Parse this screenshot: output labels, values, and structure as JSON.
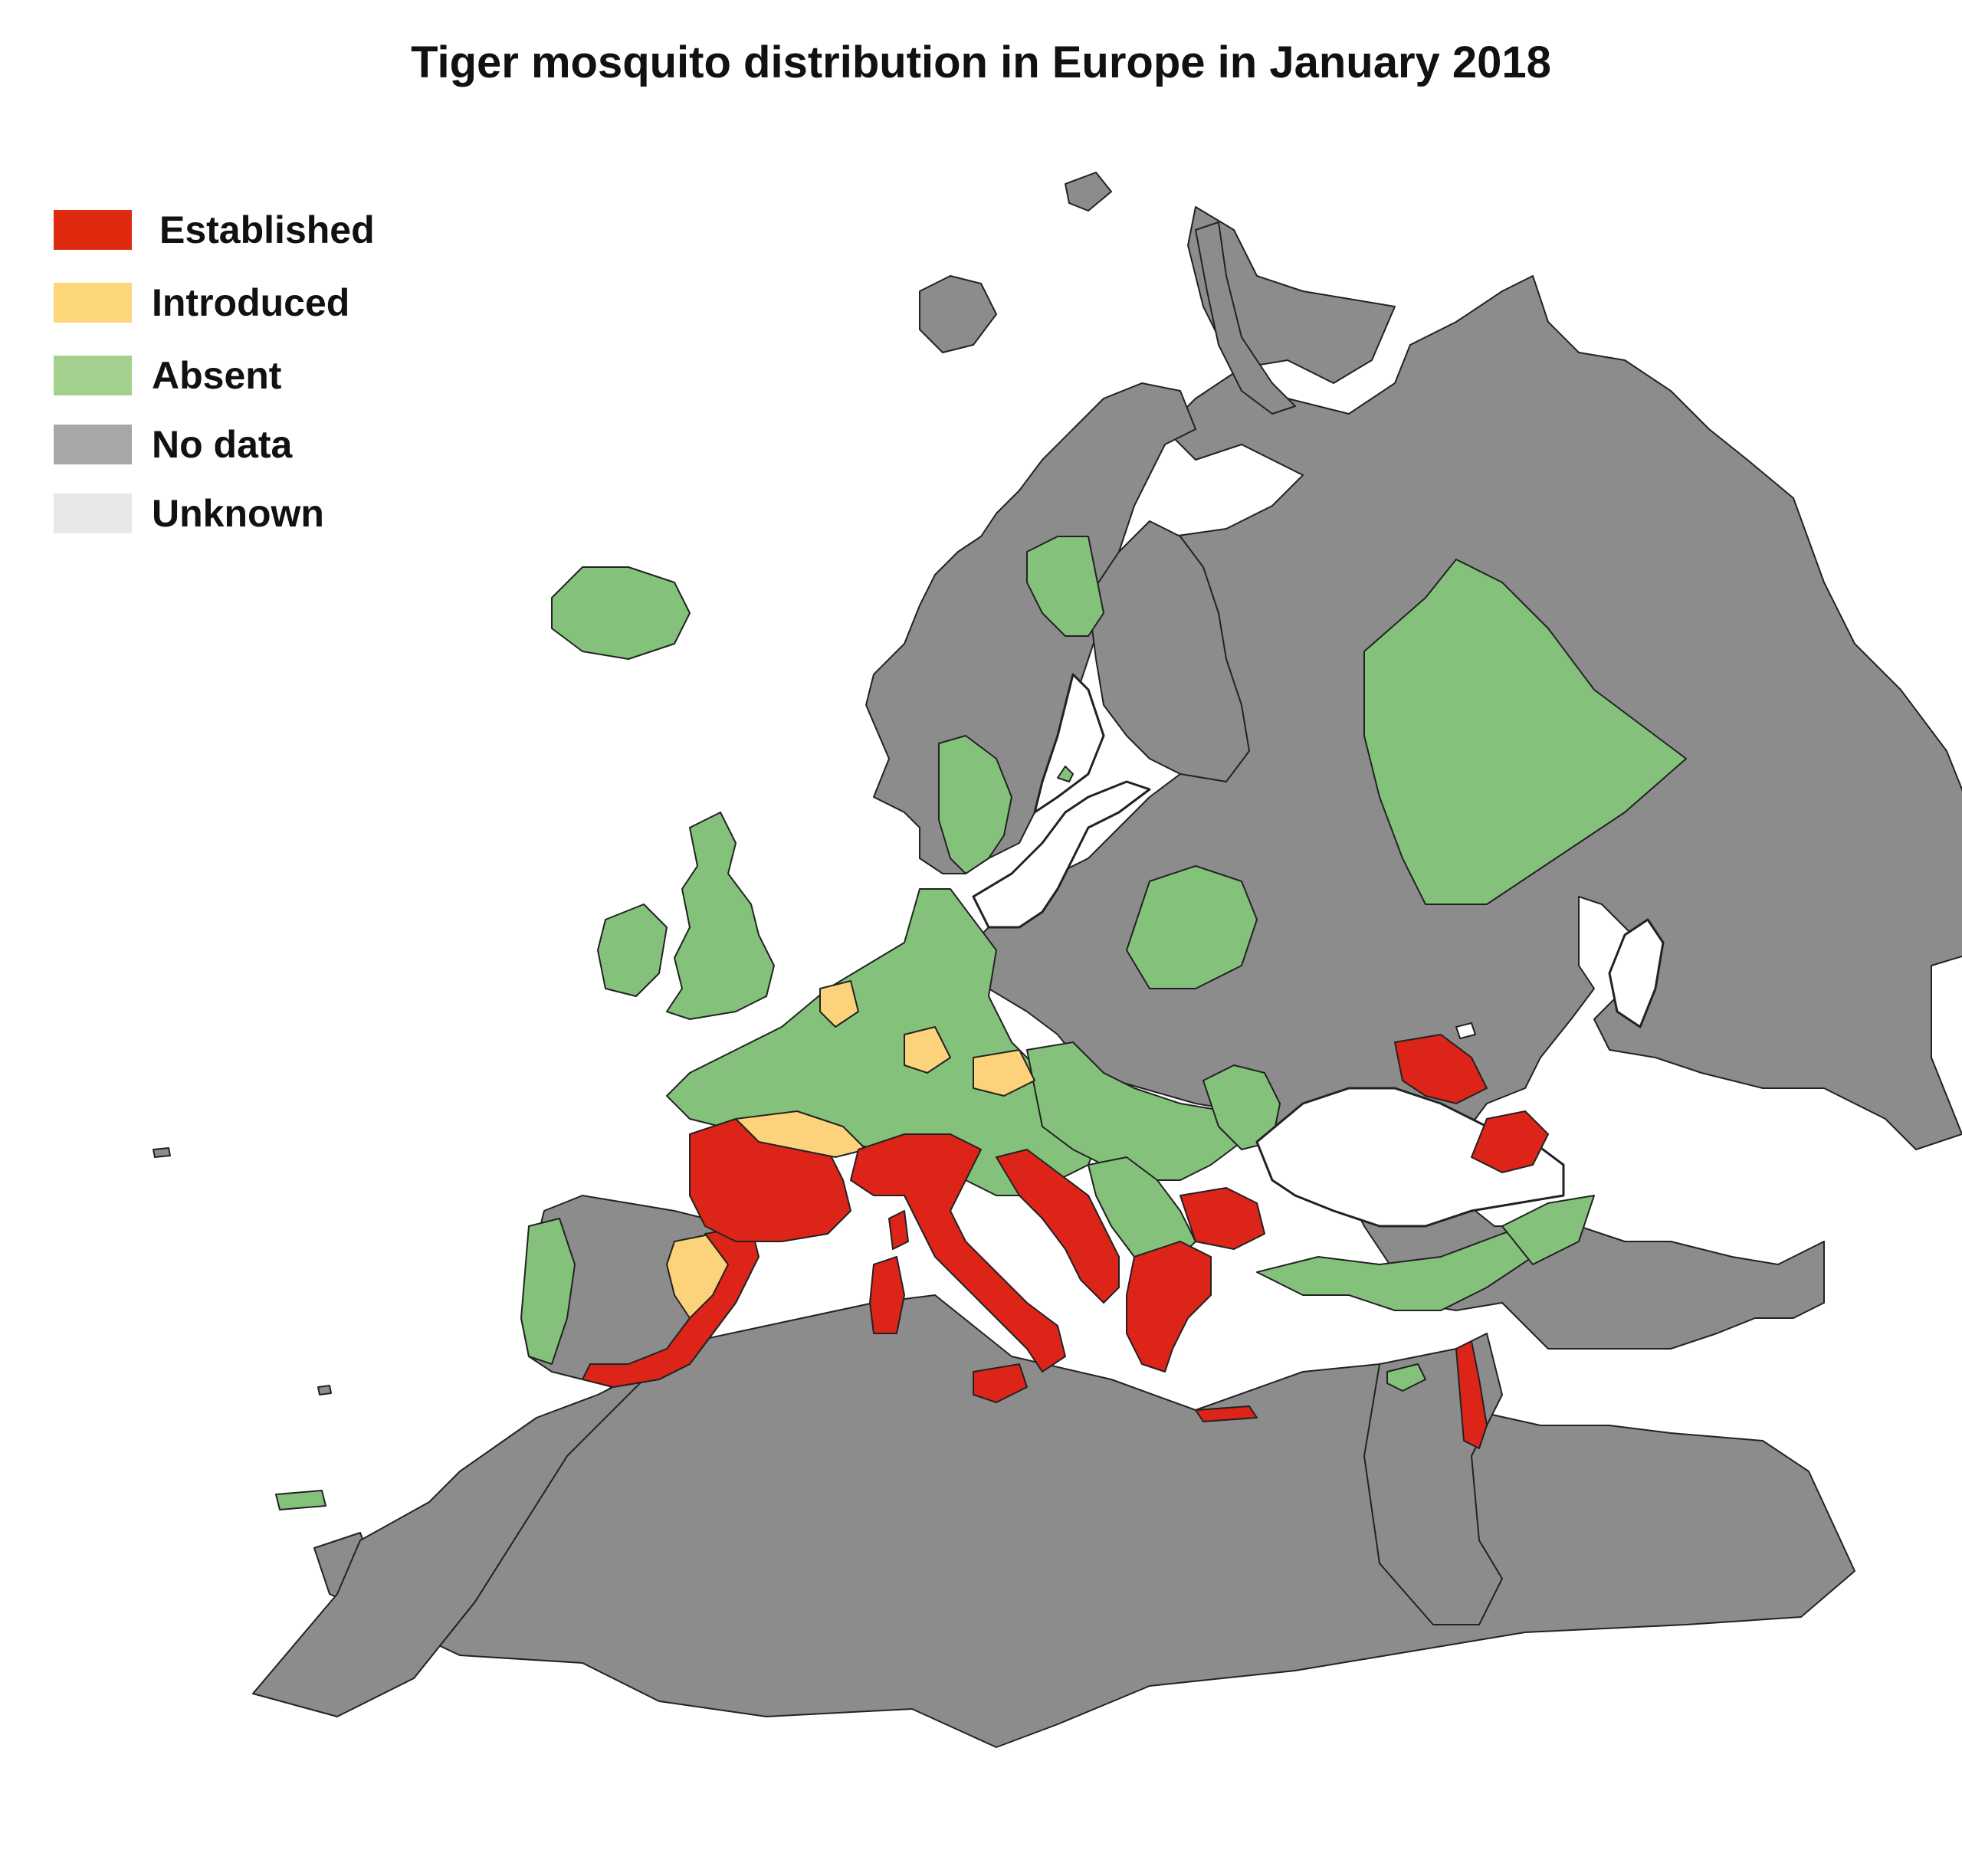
{
  "title": "Tiger mosquito distribution in Europe in January 2018",
  "legend": [
    {
      "label": "Established",
      "color": "#e02a10"
    },
    {
      "label": "Introduced",
      "color": "#fcd77a"
    },
    {
      "label": "Absent",
      "color": "#a4d08e"
    },
    {
      "label": "No data",
      "color": "#a8a6a6"
    },
    {
      "label": "Unknown",
      "color": "#e8e8e8"
    }
  ],
  "colors": {
    "established": "#dd2418",
    "introduced": "#fcd27a",
    "absent": "#84c27c",
    "no_data": "#8c8c8c",
    "unknown": "#ffffff",
    "border": "#222222"
  }
}
